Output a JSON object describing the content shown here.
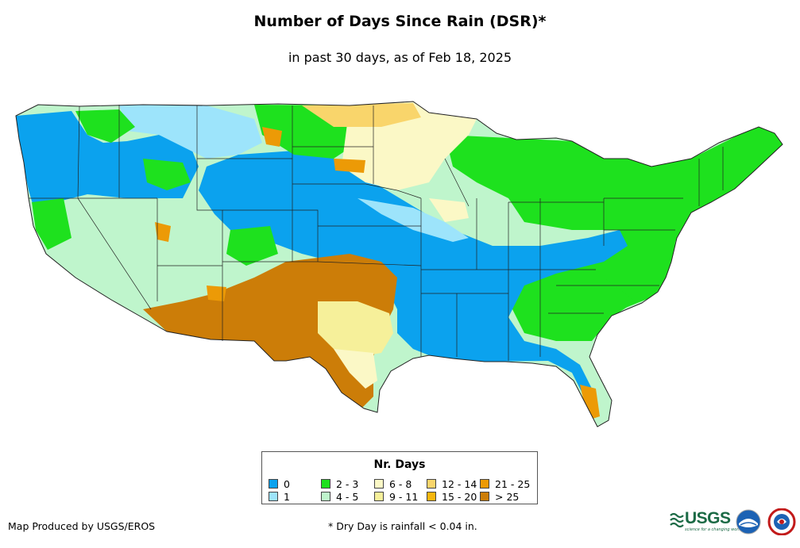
{
  "header": {
    "title": "Number of Days Since Rain (DSR)*",
    "subtitle": "in past 30 days, as of Feb 18, 2025"
  },
  "legend": {
    "title": "Nr. Days",
    "items": [
      {
        "label": "0",
        "color": "#0ba2ee"
      },
      {
        "label": "1",
        "color": "#9de4fb"
      },
      {
        "label": "2 - 3",
        "color": "#1ee11e"
      },
      {
        "label": "4 - 5",
        "color": "#bff5cc"
      },
      {
        "label": "6 - 8",
        "color": "#fbf8c6"
      },
      {
        "label": "9 - 11",
        "color": "#f6f09a"
      },
      {
        "label": "12 - 14",
        "color": "#f9d56b"
      },
      {
        "label": "15 - 20",
        "color": "#f6b60e"
      },
      {
        "label": "21 - 25",
        "color": "#ec9a06"
      },
      {
        "label": "> 25",
        "color": "#cc7d08"
      }
    ]
  },
  "footer": {
    "producer": "Map Produced by USGS/EROS",
    "note": "* Dry Day is rainfall < 0.04 in."
  },
  "logos": {
    "usgs": "USGS",
    "usgs_tagline": "science for a changing world",
    "icons": [
      "usgs-logo",
      "noaa-logo",
      "nws-logo"
    ]
  }
}
